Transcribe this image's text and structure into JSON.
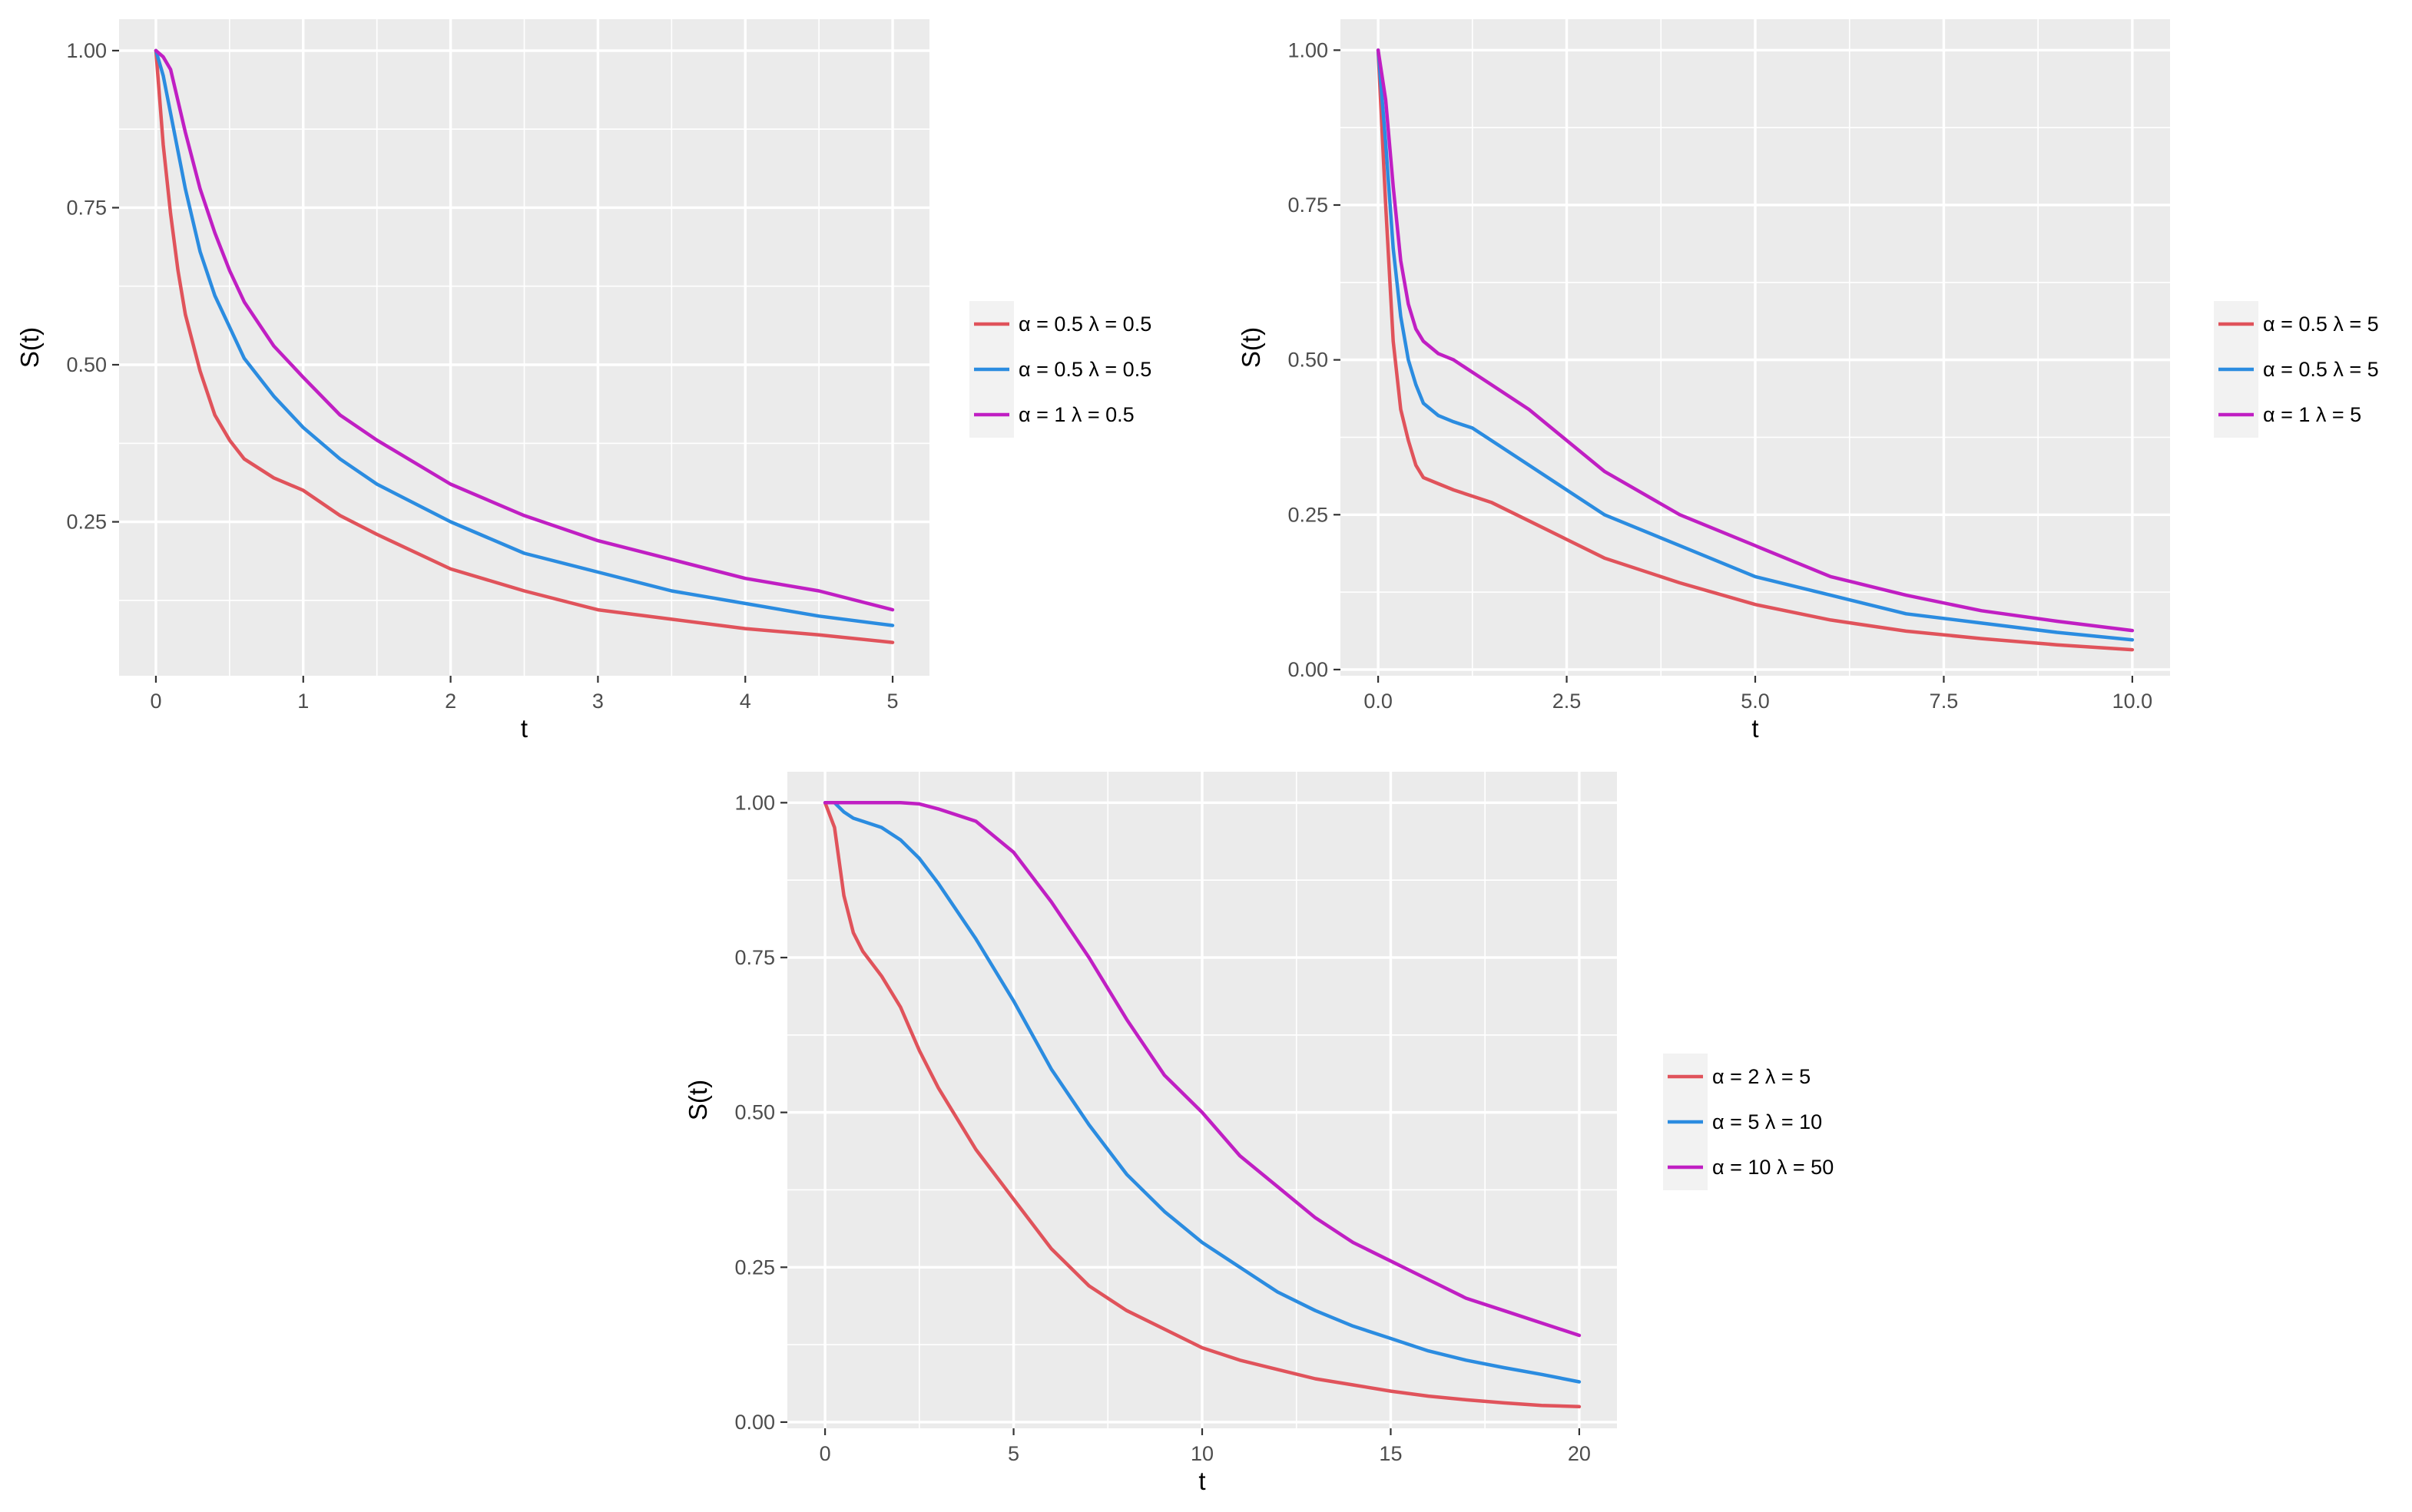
{
  "colors": {
    "panel": "#EBEBEB",
    "grid": "#FFFFFF",
    "axis_text": "#4D4D4D",
    "title_text": "#000000"
  },
  "chart_data": [
    {
      "type": "line",
      "xlabel": "t",
      "ylabel": "S(t)",
      "xlim": [
        -0.25,
        5.25
      ],
      "ylim": [
        0.005,
        1.05
      ],
      "x_ticks": [
        0,
        1,
        2,
        3,
        4,
        5
      ],
      "x_tick_labels": [
        "0",
        "1",
        "2",
        "3",
        "4",
        "5"
      ],
      "y_ticks": [
        0.25,
        0.5,
        0.75,
        1.0
      ],
      "y_tick_labels": [
        "0.25",
        "0.50",
        "0.75",
        "1.00"
      ],
      "x": [
        0,
        0.05,
        0.1,
        0.15,
        0.2,
        0.3,
        0.4,
        0.5,
        0.6,
        0.8,
        1.0,
        1.25,
        1.5,
        2.0,
        2.5,
        3.0,
        3.5,
        4.0,
        4.5,
        5.0
      ],
      "series": [
        {
          "name": "α = 0.5   λ = 0.5",
          "color": "#E0535B",
          "values": [
            1.0,
            0.85,
            0.74,
            0.65,
            0.58,
            0.49,
            0.42,
            0.38,
            0.35,
            0.32,
            0.3,
            0.26,
            0.23,
            0.175,
            0.14,
            0.11,
            0.095,
            0.08,
            0.07,
            0.058
          ]
        },
        {
          "name": "α = 0.5   λ = 0.5",
          "color": "#2B8CE0",
          "values": [
            1.0,
            0.96,
            0.9,
            0.84,
            0.78,
            0.68,
            0.61,
            0.56,
            0.51,
            0.45,
            0.4,
            0.35,
            0.31,
            0.25,
            0.2,
            0.17,
            0.14,
            0.12,
            0.1,
            0.085
          ]
        },
        {
          "name": "α = 1   λ = 0.5",
          "color": "#C01FC3",
          "values": [
            1.0,
            0.99,
            0.97,
            0.92,
            0.87,
            0.78,
            0.71,
            0.65,
            0.6,
            0.53,
            0.48,
            0.42,
            0.38,
            0.31,
            0.26,
            0.22,
            0.19,
            0.16,
            0.14,
            0.11
          ]
        }
      ]
    },
    {
      "type": "line",
      "xlabel": "t",
      "ylabel": "S(t)",
      "xlim": [
        -0.5,
        10.5
      ],
      "ylim": [
        -0.01,
        1.05
      ],
      "x_ticks": [
        0,
        2.5,
        5,
        7.5,
        10
      ],
      "x_tick_labels": [
        "0.0",
        "2.5",
        "5.0",
        "7.5",
        "10.0"
      ],
      "y_ticks": [
        0,
        0.25,
        0.5,
        0.75,
        1.0
      ],
      "y_tick_labels": [
        "0.00",
        "0.25",
        "0.50",
        "0.75",
        "1.00"
      ],
      "x": [
        0,
        0.1,
        0.2,
        0.3,
        0.4,
        0.5,
        0.6,
        0.8,
        1.0,
        1.25,
        1.5,
        2.0,
        2.5,
        3.0,
        4.0,
        5.0,
        6.0,
        7.0,
        8.0,
        9.0,
        10.0
      ],
      "series": [
        {
          "name": "α = 0.5   λ = 5",
          "color": "#E0535B",
          "values": [
            1.0,
            0.75,
            0.53,
            0.42,
            0.37,
            0.33,
            0.31,
            0.3,
            0.29,
            0.28,
            0.27,
            0.24,
            0.21,
            0.18,
            0.14,
            0.105,
            0.08,
            0.062,
            0.05,
            0.04,
            0.032
          ]
        },
        {
          "name": "α = 0.5   λ = 5",
          "color": "#2B8CE0",
          "values": [
            1.0,
            0.85,
            0.68,
            0.57,
            0.5,
            0.46,
            0.43,
            0.41,
            0.4,
            0.39,
            0.37,
            0.33,
            0.29,
            0.25,
            0.2,
            0.15,
            0.12,
            0.09,
            0.075,
            0.06,
            0.048
          ]
        },
        {
          "name": "α = 1   λ = 5",
          "color": "#C01FC3",
          "values": [
            1.0,
            0.92,
            0.78,
            0.66,
            0.59,
            0.55,
            0.53,
            0.51,
            0.5,
            0.48,
            0.46,
            0.42,
            0.37,
            0.32,
            0.25,
            0.2,
            0.15,
            0.12,
            0.095,
            0.078,
            0.063
          ]
        }
      ]
    },
    {
      "type": "line",
      "xlabel": "t",
      "ylabel": "S(t)",
      "xlim": [
        -1,
        21
      ],
      "ylim": [
        -0.01,
        1.05
      ],
      "x_ticks": [
        0,
        5,
        10,
        15,
        20
      ],
      "x_tick_labels": [
        "0",
        "5",
        "10",
        "15",
        "20"
      ],
      "y_ticks": [
        0,
        0.25,
        0.5,
        0.75,
        1.0
      ],
      "y_tick_labels": [
        "0.00",
        "0.25",
        "0.50",
        "0.75",
        "1.00"
      ],
      "x": [
        0,
        0.25,
        0.5,
        0.75,
        1,
        1.5,
        2,
        2.5,
        3,
        4,
        5,
        6,
        7,
        8,
        9,
        10,
        11,
        12,
        13,
        14,
        15,
        16,
        17,
        18,
        19,
        20
      ],
      "series": [
        {
          "name": "α = 2   λ = 5",
          "color": "#E0535B",
          "values": [
            1.0,
            0.96,
            0.85,
            0.79,
            0.76,
            0.72,
            0.67,
            0.6,
            0.54,
            0.44,
            0.36,
            0.28,
            0.22,
            0.18,
            0.15,
            0.12,
            0.1,
            0.085,
            0.07,
            0.06,
            0.05,
            0.042,
            0.036,
            0.031,
            0.027,
            0.025
          ]
        },
        {
          "name": "α = 5   λ = 10",
          "color": "#2B8CE0",
          "values": [
            1.0,
            1.0,
            0.985,
            0.975,
            0.97,
            0.96,
            0.94,
            0.91,
            0.87,
            0.78,
            0.68,
            0.57,
            0.48,
            0.4,
            0.34,
            0.29,
            0.25,
            0.21,
            0.18,
            0.155,
            0.135,
            0.115,
            0.1,
            0.088,
            0.077,
            0.065
          ]
        },
        {
          "name": "α = 10   λ = 50",
          "color": "#C01FC3",
          "values": [
            1.0,
            1.0,
            1.0,
            1.0,
            1.0,
            1.0,
            1.0,
            0.998,
            0.99,
            0.97,
            0.92,
            0.84,
            0.75,
            0.65,
            0.56,
            0.5,
            0.43,
            0.38,
            0.33,
            0.29,
            0.26,
            0.23,
            0.2,
            0.18,
            0.16,
            0.14
          ]
        }
      ]
    }
  ]
}
